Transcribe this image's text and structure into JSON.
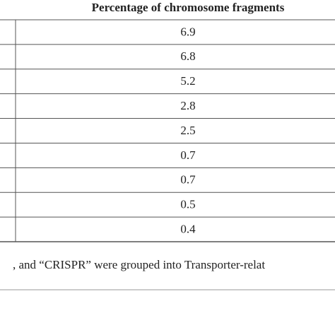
{
  "table": {
    "header": [
      "Percentage of chromosome fragments"
    ],
    "rows": [
      [
        "6.9"
      ],
      [
        "6.8"
      ],
      [
        "5.2"
      ],
      [
        "2.8"
      ],
      [
        "2.5"
      ],
      [
        "0.7"
      ],
      [
        "0.7"
      ],
      [
        "0.5"
      ],
      [
        "0.4"
      ]
    ]
  },
  "footnote": ", and “CRISPR” were grouped into Transporter-relat"
}
